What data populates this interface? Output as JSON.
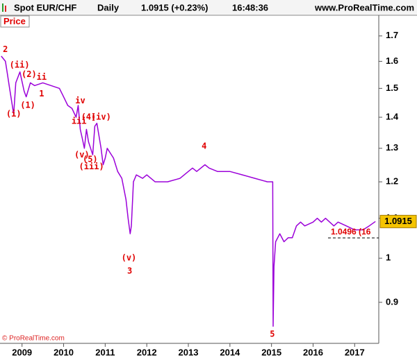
{
  "chart_data": {
    "type": "line",
    "title": "Spot EUR/CHF",
    "interval": "Daily",
    "last_quote": "1.0915 (+0.23%)",
    "time": "16:48:36",
    "source": "www.ProRealTime.com",
    "panel_label": "Price",
    "copyright": "© ProRealTime.com",
    "color": "#9b00d9",
    "log_scale": true,
    "x": [
      2008.5,
      2008.6,
      2008.65,
      2008.7,
      2008.8,
      2008.85,
      2008.95,
      2009.05,
      2009.1,
      2009.2,
      2009.3,
      2009.5,
      2009.7,
      2009.9,
      2010.0,
      2010.1,
      2010.2,
      2010.3,
      2010.35,
      2010.4,
      2010.45,
      2010.5,
      2010.55,
      2010.6,
      2010.7,
      2010.75,
      2010.8,
      2010.9,
      2010.95,
      2011.0,
      2011.05,
      2011.1,
      2011.2,
      2011.3,
      2011.4,
      2011.5,
      2011.55,
      2011.6,
      2011.63,
      2011.68,
      2011.75,
      2011.9,
      2012.0,
      2012.2,
      2012.5,
      2012.8,
      2013.0,
      2013.1,
      2013.2,
      2013.4,
      2013.5,
      2013.7,
      2014.0,
      2014.3,
      2014.6,
      2014.9,
      2015.03,
      2015.04,
      2015.06,
      2015.1,
      2015.2,
      2015.3,
      2015.4,
      2015.5,
      2015.6,
      2015.7,
      2015.8,
      2016.0,
      2016.1,
      2016.2,
      2016.3,
      2016.4,
      2016.5,
      2016.6,
      2016.8,
      2017.0,
      2017.2,
      2017.35,
      2017.5
    ],
    "values": [
      1.62,
      1.6,
      1.55,
      1.5,
      1.41,
      1.52,
      1.56,
      1.49,
      1.47,
      1.52,
      1.51,
      1.52,
      1.51,
      1.5,
      1.47,
      1.44,
      1.43,
      1.4,
      1.44,
      1.36,
      1.33,
      1.3,
      1.36,
      1.32,
      1.28,
      1.37,
      1.38,
      1.3,
      1.25,
      1.27,
      1.3,
      1.29,
      1.27,
      1.23,
      1.21,
      1.15,
      1.1,
      1.06,
      1.08,
      1.2,
      1.22,
      1.21,
      1.22,
      1.2,
      1.2,
      1.21,
      1.23,
      1.24,
      1.23,
      1.25,
      1.24,
      1.23,
      1.23,
      1.22,
      1.21,
      1.2,
      1.2,
      0.85,
      0.98,
      1.04,
      1.06,
      1.04,
      1.05,
      1.05,
      1.08,
      1.09,
      1.08,
      1.09,
      1.1,
      1.09,
      1.1,
      1.09,
      1.08,
      1.09,
      1.08,
      1.07,
      1.07,
      1.08,
      1.0915
    ],
    "last_price": 1.0915,
    "reference_line": {
      "value": 1.0496,
      "label": "1.0496 (16"
    },
    "annotations": [
      {
        "text": "2",
        "x": 2008.6,
        "y": 1.646
      },
      {
        "text": "(ii)",
        "x": 2008.94,
        "y": 1.585
      },
      {
        "text": "(2)",
        "x": 2009.17,
        "y": 1.55
      },
      {
        "text": "ii",
        "x": 2009.47,
        "y": 1.54
      },
      {
        "text": "1",
        "x": 2009.47,
        "y": 1.48
      },
      {
        "text": "(i)",
        "x": 2008.8,
        "y": 1.41
      },
      {
        "text": "(1)",
        "x": 2009.14,
        "y": 1.44
      },
      {
        "text": "iv",
        "x": 2010.4,
        "y": 1.456
      },
      {
        "text": "(4)",
        "x": 2010.6,
        "y": 1.4
      },
      {
        "text": "(iv)",
        "x": 2010.9,
        "y": 1.4
      },
      {
        "text": "iii",
        "x": 2010.37,
        "y": 1.386
      },
      {
        "text": "(v)",
        "x": 2010.44,
        "y": 1.279
      },
      {
        "text": "(5)",
        "x": 2010.64,
        "y": 1.266
      },
      {
        "text": "(iii)",
        "x": 2010.67,
        "y": 1.244
      },
      {
        "text": "4",
        "x": 2013.38,
        "y": 1.306
      },
      {
        "text": "(v)",
        "x": 2011.57,
        "y": 1.0
      },
      {
        "text": "3",
        "x": 2011.59,
        "y": 0.969
      },
      {
        "text": "5",
        "x": 2015.02,
        "y": 0.834
      }
    ],
    "xlim": [
      2008.47,
      2017.58
    ],
    "ylim": [
      0.816,
      1.786
    ],
    "xticks": [
      2009,
      2010,
      2011,
      2012,
      2013,
      2014,
      2015,
      2016,
      2017
    ],
    "yticks": [
      0.9,
      1,
      1.1,
      1.2,
      1.3,
      1.4,
      1.5,
      1.6,
      1.7
    ]
  }
}
